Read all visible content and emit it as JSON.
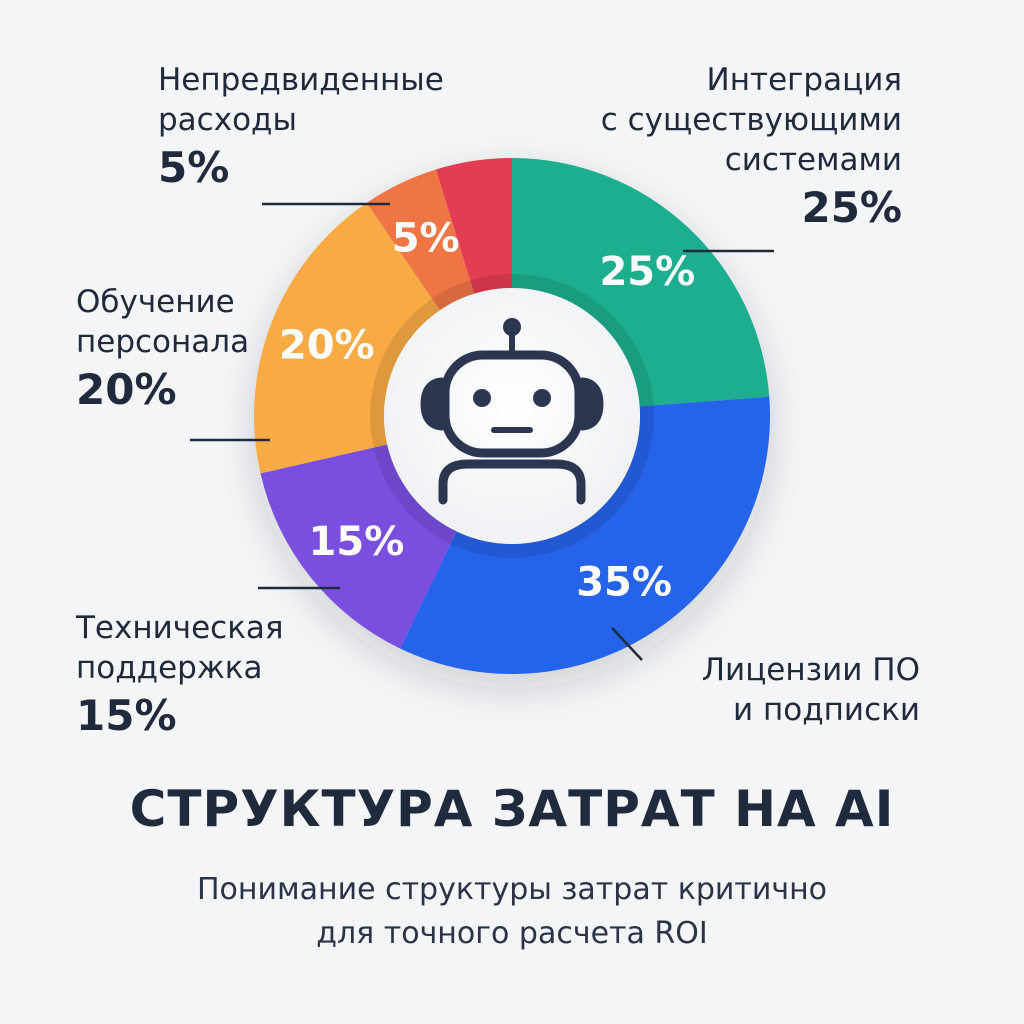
{
  "chart_data": {
    "type": "pie",
    "title": "СТРУКТУРА ЗАТРАТ НА AI",
    "subtitle_lines": [
      "Понимание структуры затрат критично",
      "для точного расчета ROI"
    ],
    "unit": "%",
    "slices": [
      {
        "id": "integration",
        "label_lines": [
          "Интеграция",
          "с существующими",
          "системами"
        ],
        "value": 25,
        "label": "25%",
        "color": "#1fae8f"
      },
      {
        "id": "licenses",
        "label_lines": [
          "Лицензии ПО",
          "и подписки"
        ],
        "value": 35,
        "label": "35%",
        "color": "#2563eb"
      },
      {
        "id": "support",
        "label_lines": [
          "Техническая",
          "поддержка"
        ],
        "value": 15,
        "label": "15%",
        "color": "#7a4fe0"
      },
      {
        "id": "training",
        "label_lines": [
          "Обучение",
          "персонала"
        ],
        "value": 20,
        "label": "20%",
        "color": "#f8ab44"
      },
      {
        "id": "unforeseen",
        "label_lines": [
          "Непредвиденные",
          "расходы"
        ],
        "value": 5,
        "label": "5%",
        "color": "#ef7445"
      },
      {
        "id": "unforeseen-red",
        "label_lines": [],
        "value": 5,
        "label": "",
        "color": "#e23d52"
      }
    ]
  },
  "callouts": {
    "unforeseen": {
      "line1": "Непредвиденные",
      "line2": "расходы",
      "pct": "5%"
    },
    "integration": {
      "line1": "Интеграция",
      "line2": "с существующими",
      "line3": "системами",
      "pct": "25%"
    },
    "training": {
      "line1": "Обучение",
      "line2": "персонала",
      "pct": "20%"
    },
    "support": {
      "line1": "Техническая",
      "line2": "поддержка",
      "pct": "15%"
    },
    "licenses": {
      "line1": "Лицензии ПО",
      "line2": "и подписки"
    }
  },
  "header": {
    "title": "СТРУКТУРА ЗАТРАТ НА AI",
    "subtitle_line1": "Понимание структуры затрат критично",
    "subtitle_line2": "для точного расчета ROI"
  },
  "icon": {
    "name": "robot-icon",
    "color": "#2b3650"
  }
}
